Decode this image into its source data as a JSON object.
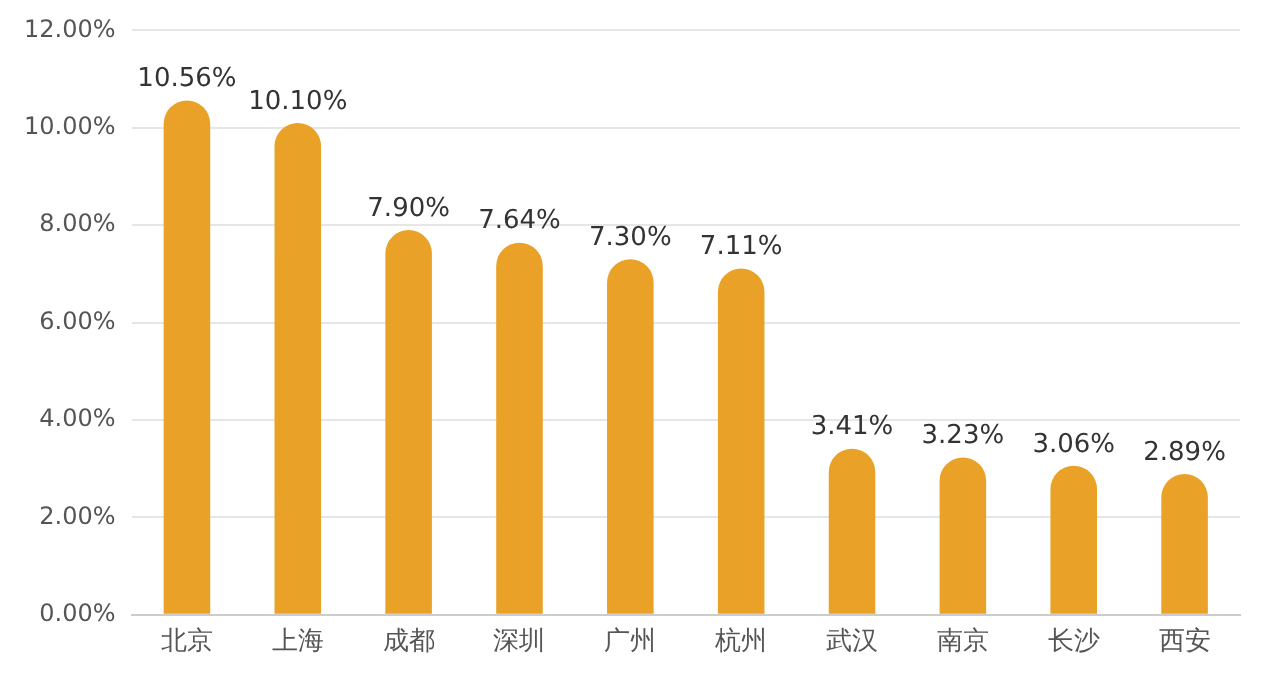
{
  "chart_data": {
    "type": "bar",
    "categories": [
      "北京",
      "上海",
      "成都",
      "深圳",
      "广州",
      "杭州",
      "武汉",
      "南京",
      "长沙",
      "西安"
    ],
    "values": [
      10.56,
      10.1,
      7.9,
      7.64,
      7.3,
      7.11,
      3.41,
      3.23,
      3.06,
      2.89
    ],
    "value_labels": [
      "10.56%",
      "10.10%",
      "7.90%",
      "7.64%",
      "7.30%",
      "7.11%",
      "3.41%",
      "3.23%",
      "3.06%",
      "2.89%"
    ],
    "color": "#e9a227",
    "ylim": [
      0,
      12
    ],
    "yticks": [
      {
        "value": 0,
        "label": "0.00%"
      },
      {
        "value": 2,
        "label": "2.00%"
      },
      {
        "value": 4,
        "label": "4.00%"
      },
      {
        "value": 6,
        "label": "6.00%"
      },
      {
        "value": 8,
        "label": "8.00%"
      },
      {
        "value": 10,
        "label": "10.00%"
      },
      {
        "value": 12,
        "label": "12.00%"
      }
    ],
    "grid": "y"
  }
}
